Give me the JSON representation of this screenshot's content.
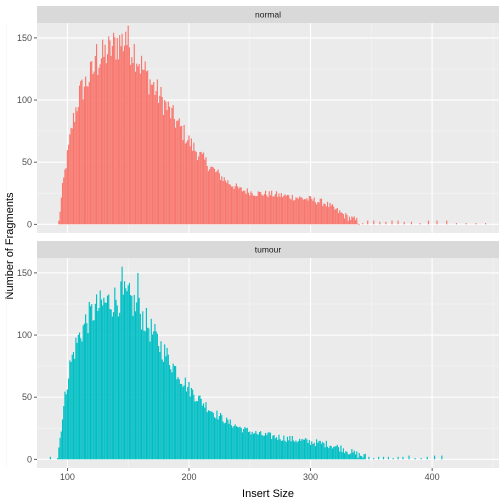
{
  "chart_data": {
    "type": "bar",
    "xlabel": "Insert Size",
    "ylabel": "Number of Fragments",
    "xlim": [
      75,
      455
    ],
    "ylim": [
      -7,
      162
    ],
    "x_ticks": [
      100,
      200,
      300,
      400
    ],
    "y_ticks": [
      0,
      50,
      100,
      150
    ],
    "grid": true,
    "legend": "none",
    "panels": [
      {
        "name": "normal",
        "color": "#F8766D",
        "range": [
          93,
          340
        ],
        "key_points": [
          [
            93,
            2
          ],
          [
            96,
            30
          ],
          [
            100,
            55
          ],
          [
            104,
            80
          ],
          [
            110,
            105
          ],
          [
            118,
            118
          ],
          [
            125,
            130
          ],
          [
            132,
            138
          ],
          [
            140,
            145
          ],
          [
            148,
            148
          ],
          [
            155,
            140
          ],
          [
            162,
            125
          ],
          [
            170,
            112
          ],
          [
            178,
            100
          ],
          [
            186,
            88
          ],
          [
            194,
            76
          ],
          [
            202,
            64
          ],
          [
            212,
            52
          ],
          [
            222,
            42
          ],
          [
            232,
            34
          ],
          [
            242,
            28
          ],
          [
            255,
            25
          ],
          [
            270,
            24
          ],
          [
            285,
            22
          ],
          [
            300,
            20
          ],
          [
            312,
            17
          ],
          [
            320,
            12
          ],
          [
            330,
            6
          ],
          [
            340,
            2
          ]
        ],
        "sparse_x": [
          343,
          347,
          352,
          357,
          362,
          367,
          372,
          377,
          383,
          390,
          397,
          404,
          412,
          420,
          428,
          436,
          444
        ],
        "peak_x": [
          124,
          135,
          141,
          148
        ],
        "peak_y": [
          145,
          148,
          150,
          155
        ]
      },
      {
        "name": "tumour",
        "color": "#00BFC4",
        "range": [
          92,
          345
        ],
        "key_points": [
          [
            92,
            2
          ],
          [
            95,
            25
          ],
          [
            98,
            50
          ],
          [
            102,
            75
          ],
          [
            108,
            95
          ],
          [
            115,
            110
          ],
          [
            122,
            120
          ],
          [
            130,
            125
          ],
          [
            138,
            128
          ],
          [
            146,
            130
          ],
          [
            152,
            128
          ],
          [
            160,
            118
          ],
          [
            168,
            105
          ],
          [
            176,
            92
          ],
          [
            184,
            80
          ],
          [
            192,
            68
          ],
          [
            200,
            57
          ],
          [
            210,
            47
          ],
          [
            220,
            38
          ],
          [
            232,
            30
          ],
          [
            245,
            24
          ],
          [
            258,
            20
          ],
          [
            272,
            18
          ],
          [
            285,
            16
          ],
          [
            300,
            14
          ],
          [
            315,
            12
          ],
          [
            325,
            9
          ],
          [
            335,
            5
          ],
          [
            345,
            2
          ]
        ],
        "sparse_x": [
          86,
          348,
          352,
          356,
          360,
          364,
          368,
          372,
          376,
          381,
          386,
          391,
          396,
          402,
          408
        ],
        "peak_x": [
          130,
          145,
          150,
          158
        ],
        "peak_y": [
          130,
          155,
          140,
          150
        ]
      }
    ]
  }
}
